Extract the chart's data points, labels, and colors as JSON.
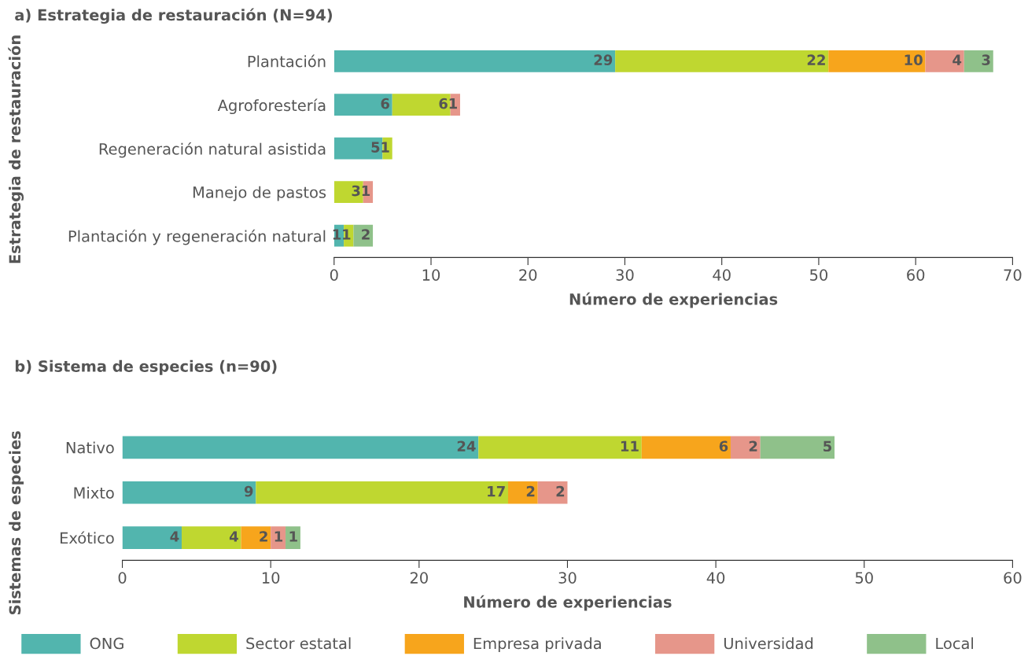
{
  "chart_data": [
    {
      "type": "bar",
      "orientation": "horizontal",
      "stacked": true,
      "title": "a) Estrategia de restauración (N=94)",
      "xlabel": "Número de experiencias",
      "ylabel": "Estrategia de restauración",
      "categories": [
        "Plantación",
        "Agroforestería",
        "Regeneración natural asistida",
        "Manejo de pastos",
        "Plantación y regeneración natural"
      ],
      "xlim": [
        0,
        70
      ],
      "xticks": [
        0,
        10,
        20,
        30,
        40,
        50,
        60,
        70
      ],
      "grid": false,
      "data_labels": true,
      "legend": false,
      "series": [
        {
          "color": "#52b5ae",
          "values": [
            29,
            6,
            5,
            null,
            1
          ]
        },
        {
          "color": "#bfd730",
          "values": [
            22,
            6,
            1,
            3,
            1
          ]
        },
        {
          "color": "#f7a51c",
          "values": [
            10,
            null,
            null,
            null,
            null
          ]
        },
        {
          "color": "#e6968a",
          "values": [
            4,
            1,
            null,
            1,
            null
          ]
        },
        {
          "color": "#8fc18a",
          "values": [
            3,
            null,
            null,
            null,
            2
          ]
        }
      ]
    },
    {
      "type": "bar",
      "orientation": "horizontal",
      "stacked": true,
      "title": "b) Sistema de especies (n=90)",
      "xlabel": "Número de experiencias",
      "ylabel": "Sistemas de especies",
      "categories": [
        "Nativo",
        "Mixto",
        "Exótico"
      ],
      "xlim": [
        0,
        60
      ],
      "xticks": [
        0,
        10,
        20,
        30,
        40,
        50,
        60
      ],
      "grid": false,
      "data_labels": true,
      "legend": "bottom",
      "series": [
        {
          "name": "ONG",
          "color": "#52b5ae",
          "values": [
            24,
            9,
            4
          ]
        },
        {
          "name": "Sector estatal",
          "color": "#bfd730",
          "values": [
            11,
            17,
            4
          ]
        },
        {
          "name": "Empresa privada",
          "color": "#f7a51c",
          "values": [
            6,
            2,
            2
          ]
        },
        {
          "name": "Universidad",
          "color": "#e6968a",
          "values": [
            2,
            2,
            1
          ]
        },
        {
          "name": "Local",
          "color": "#8fc18a",
          "values": [
            5,
            null,
            1
          ]
        }
      ]
    }
  ]
}
